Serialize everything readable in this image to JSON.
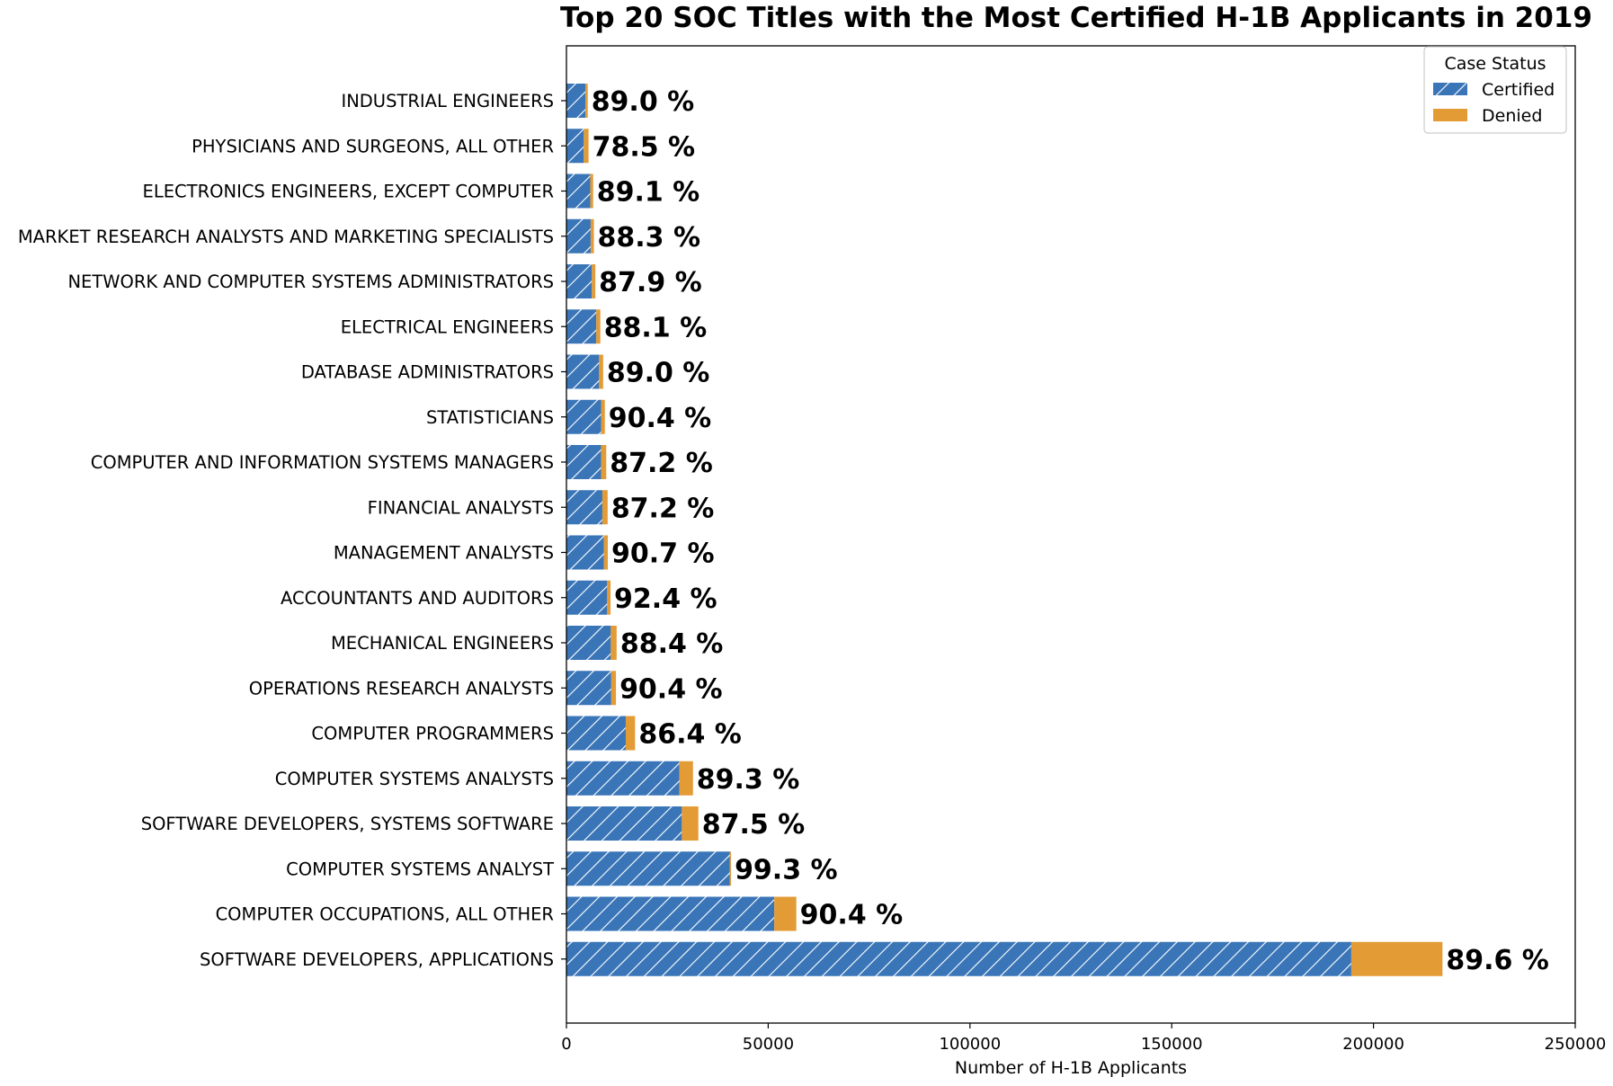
{
  "chart_data": {
    "type": "bar",
    "orientation": "horizontal",
    "stacked": true,
    "title": "Top 20 SOC Titles with the Most Certified H-1B Applicants in 2019",
    "xlabel": "Number of H-1B Applicants",
    "ylabel": "",
    "xlim": [
      0,
      250000
    ],
    "xticks": [
      "0",
      "50000",
      "100000",
      "150000",
      "200000",
      "250000"
    ],
    "grid": false,
    "legend": {
      "title": "Case Status",
      "position": "top-right"
    },
    "categories": [
      "INDUSTRIAL ENGINEERS",
      "PHYSICIANS AND SURGEONS, ALL OTHER",
      "ELECTRONICS ENGINEERS, EXCEPT COMPUTER",
      "MARKET RESEARCH ANALYSTS AND MARKETING SPECIALISTS",
      "NETWORK AND COMPUTER SYSTEMS ADMINISTRATORS",
      "ELECTRICAL ENGINEERS",
      "DATABASE ADMINISTRATORS",
      "STATISTICIANS",
      "COMPUTER AND INFORMATION SYSTEMS MANAGERS",
      "FINANCIAL ANALYSTS",
      "MANAGEMENT ANALYSTS",
      "ACCOUNTANTS AND AUDITORS",
      "MECHANICAL ENGINEERS",
      "OPERATIONS RESEARCH ANALYSTS",
      "COMPUTER PROGRAMMERS",
      "COMPUTER SYSTEMS ANALYSTS",
      "SOFTWARE DEVELOPERS, SYSTEMS SOFTWARE",
      "COMPUTER SYSTEMS ANALYST",
      "COMPUTER OCCUPATIONS, ALL OTHER",
      "SOFTWARE DEVELOPERS, APPLICATIONS"
    ],
    "series": [
      {
        "name": "Certified",
        "color": "#3a75b8",
        "pattern": "hatch",
        "values": [
          4700,
          4300,
          5900,
          6000,
          6300,
          7400,
          8100,
          8600,
          8600,
          8900,
          9300,
          10100,
          11000,
          11100,
          14700,
          28000,
          28600,
          40500,
          51500,
          194500
        ]
      },
      {
        "name": "Denied",
        "color": "#e39b35",
        "pattern": "solid",
        "values": [
          580,
          1180,
          720,
          800,
          870,
          1000,
          1000,
          920,
          1260,
          1310,
          950,
          830,
          1440,
          1170,
          2310,
          3360,
          4090,
          290,
          5470,
          22600
        ]
      }
    ],
    "data_labels": [
      "89.0 %",
      "78.5 %",
      "89.1 %",
      "88.3 %",
      "87.9 %",
      "88.1 %",
      "89.0 %",
      "90.4 %",
      "87.2 %",
      "87.2 %",
      "90.7 %",
      "92.4 %",
      "88.4 %",
      "90.4 %",
      "86.4 %",
      "89.3 %",
      "87.5 %",
      "99.3 %",
      "90.4 %",
      "89.6 %"
    ]
  }
}
